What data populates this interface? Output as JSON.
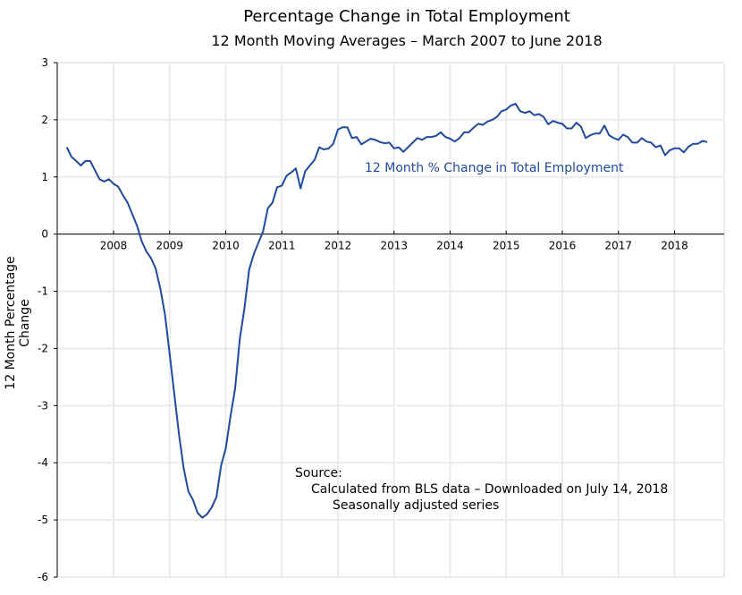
{
  "chart_data": {
    "type": "line",
    "title": "Percentage Change in Total Employment",
    "subtitle": "12 Month Moving Averages  –  March 2007 to June 2018",
    "xlabel": "",
    "ylabel": "12 Month Percentage Change",
    "ylim": [
      -6,
      3
    ],
    "xlim": [
      2007,
      2019
    ],
    "grid": true,
    "yticks": [
      "3",
      "2",
      "1",
      "0",
      "-1",
      "-2",
      "-3",
      "-4",
      "-5",
      "-6"
    ],
    "ytick_values": [
      3,
      2,
      1,
      0,
      -1,
      -2,
      -3,
      -4,
      -5,
      -6
    ],
    "xticks": [
      "2008",
      "2009",
      "2010",
      "2011",
      "2012",
      "2013",
      "2014",
      "2015",
      "2016",
      "2017",
      "2018"
    ],
    "xtick_values": [
      2008,
      2009,
      2010,
      2011,
      2012,
      2013,
      2014,
      2015,
      2016,
      2017,
      2018
    ],
    "series": [
      {
        "name": "12 Month % Change in Total Employment",
        "color": "#1f4aa0",
        "start": 2007.167,
        "step": 0.08333,
        "values": [
          1.52,
          1.35,
          1.28,
          1.2,
          1.28,
          1.28,
          1.12,
          0.96,
          0.92,
          0.96,
          0.88,
          0.83,
          0.68,
          0.55,
          0.35,
          0.15,
          -0.12,
          -0.3,
          -0.42,
          -0.6,
          -0.95,
          -1.4,
          -2.1,
          -2.8,
          -3.5,
          -4.1,
          -4.5,
          -4.65,
          -4.88,
          -4.96,
          -4.9,
          -4.78,
          -4.6,
          -4.05,
          -3.75,
          -3.2,
          -2.7,
          -1.84,
          -1.3,
          -0.62,
          -0.35,
          -0.15,
          0.05,
          0.45,
          0.55,
          0.82,
          0.85,
          1.02,
          1.08,
          1.15,
          0.8,
          1.1,
          1.2,
          1.3,
          1.52,
          1.48,
          1.5,
          1.58,
          1.83,
          1.87,
          1.87,
          1.68,
          1.7,
          1.57,
          1.62,
          1.67,
          1.65,
          1.61,
          1.59,
          1.6,
          1.5,
          1.52,
          1.44,
          1.52,
          1.6,
          1.68,
          1.65,
          1.7,
          1.7,
          1.72,
          1.78,
          1.7,
          1.67,
          1.62,
          1.68,
          1.78,
          1.78,
          1.86,
          1.93,
          1.91,
          1.97,
          2.0,
          2.05,
          2.15,
          2.18,
          2.25,
          2.28,
          2.15,
          2.12,
          2.15,
          2.08,
          2.1,
          2.05,
          1.92,
          1.98,
          1.95,
          1.93,
          1.85,
          1.85,
          1.95,
          1.88,
          1.68,
          1.73,
          1.76,
          1.76,
          1.9,
          1.73,
          1.68,
          1.65,
          1.74,
          1.7,
          1.6,
          1.6,
          1.68,
          1.62,
          1.6,
          1.52,
          1.55,
          1.38,
          1.47,
          1.5,
          1.5,
          1.43,
          1.53,
          1.58,
          1.58,
          1.63,
          1.61
        ]
      }
    ],
    "annotations": {
      "series_label": "12 Month % Change in Total Employment",
      "source_heading": "Source:",
      "source_line1": "Calculated from BLS data – Downloaded on July 14, 2018",
      "source_line2": "Seasonally adjusted series"
    }
  }
}
